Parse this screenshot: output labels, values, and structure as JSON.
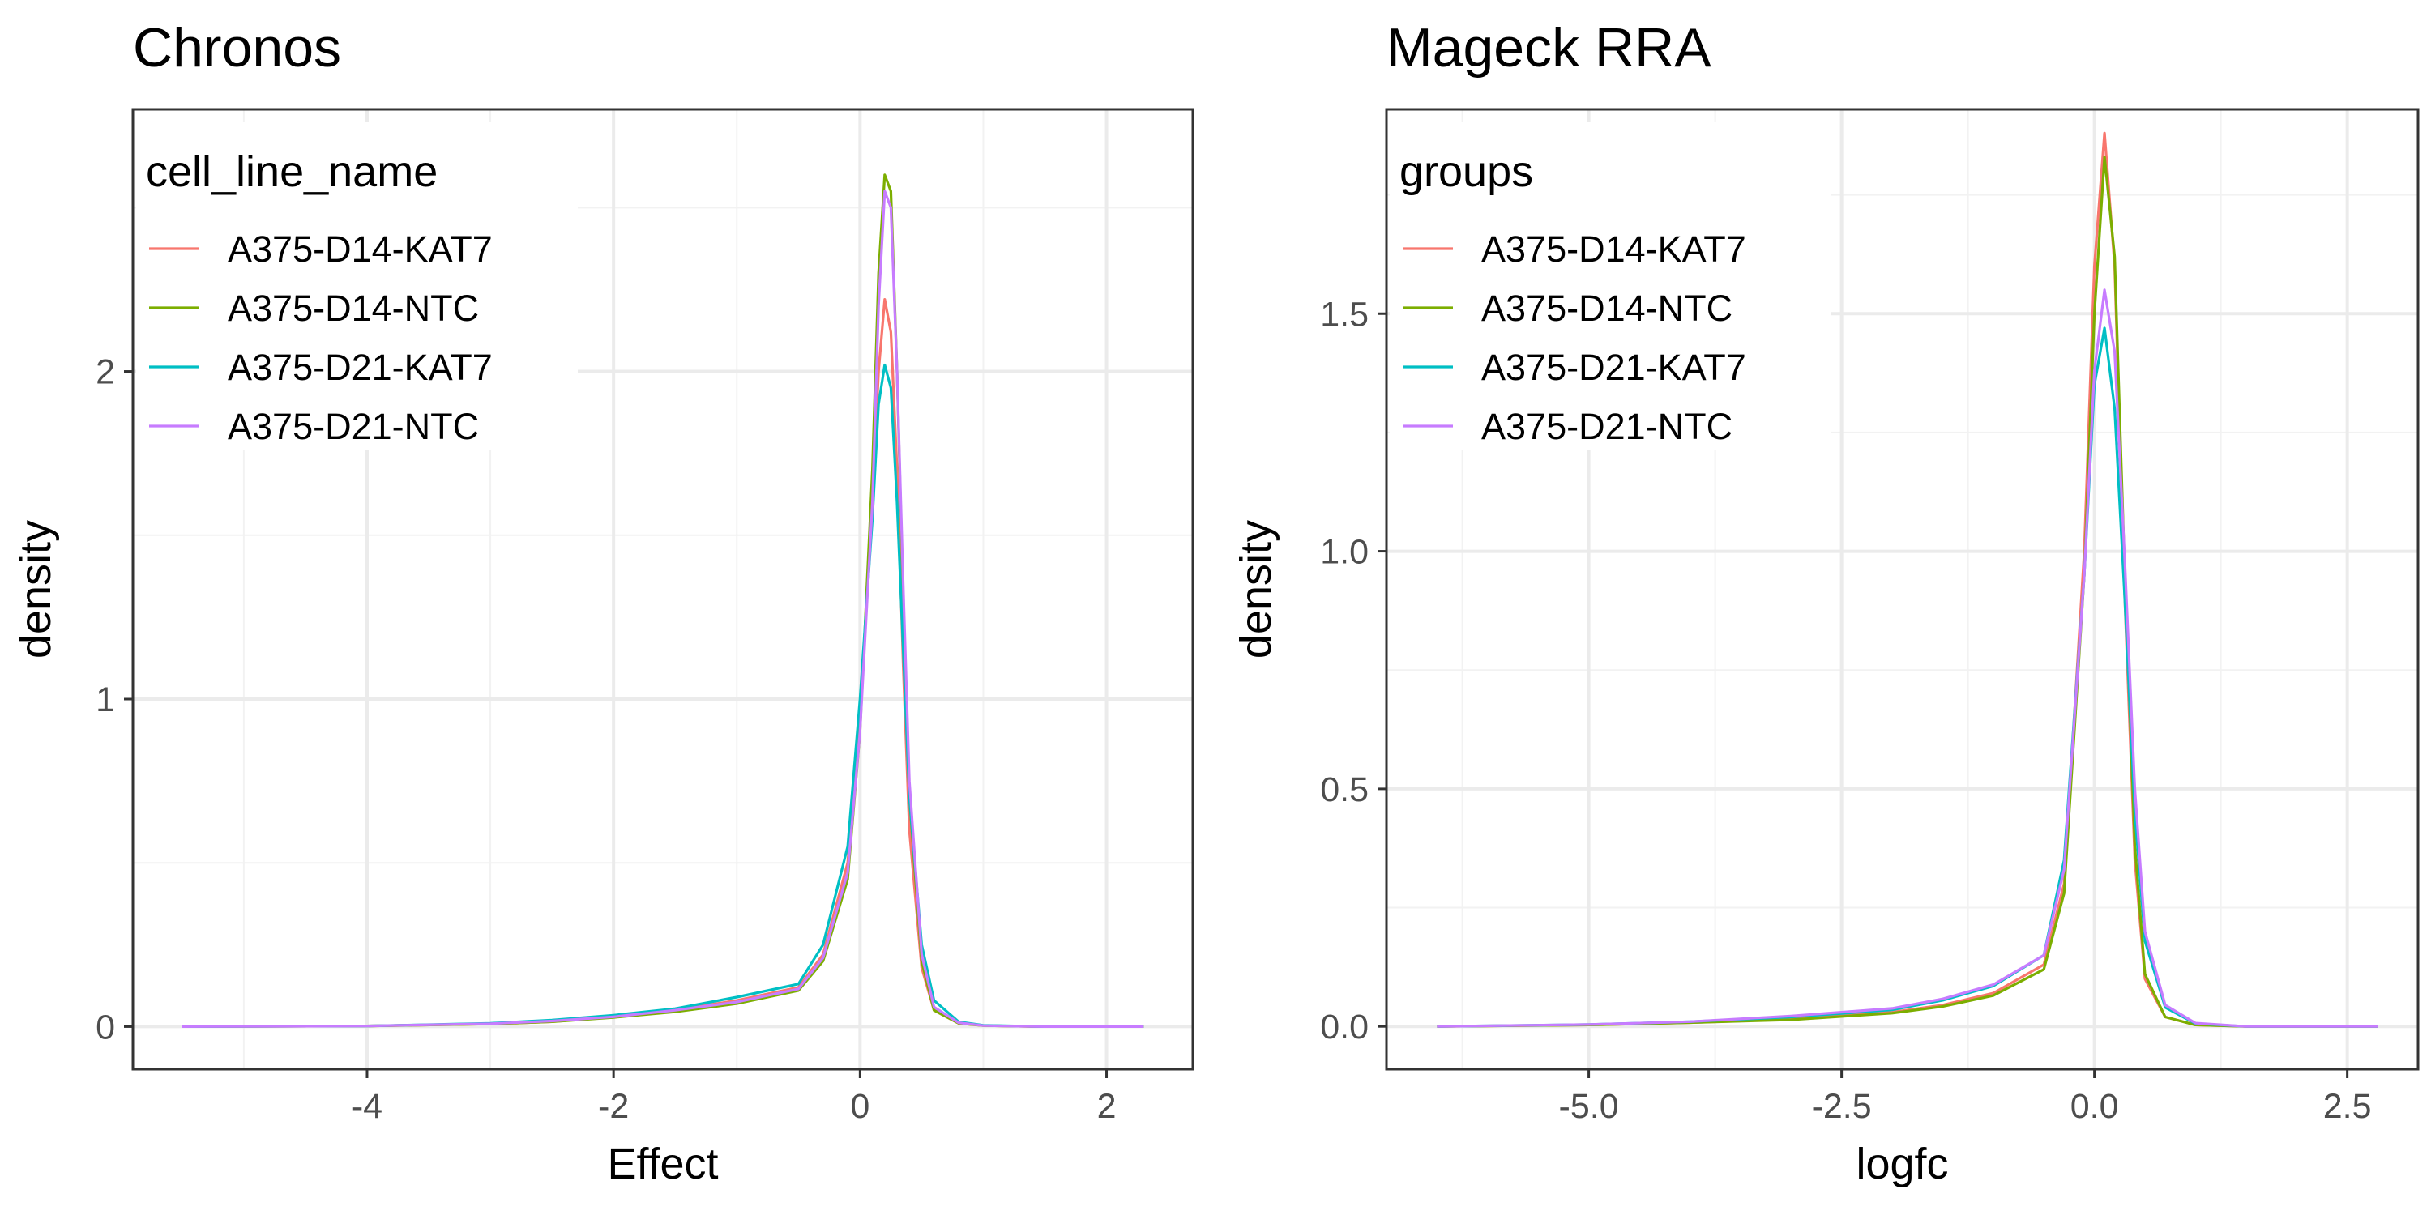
{
  "chart_data": [
    {
      "type": "line",
      "title": "Chronos",
      "xlabel": "Effect",
      "ylabel": "density",
      "xlim": [
        -5.9,
        2.7
      ],
      "ylim": [
        -0.13,
        2.8
      ],
      "xticks": [
        -4,
        -2,
        0,
        2
      ],
      "xtick_labels": [
        "-4",
        "-2",
        "0",
        "2"
      ],
      "yticks": [
        0,
        1,
        2
      ],
      "ytick_labels": [
        "0",
        "1",
        "2"
      ],
      "grid": true,
      "legend": {
        "title": "cell_line_name",
        "position": "top-left"
      },
      "series": [
        {
          "name": "A375-D14-KAT7",
          "color": "#F8766D",
          "x": [
            -5.5,
            -4.0,
            -3.0,
            -2.5,
            -2.0,
            -1.5,
            -1.0,
            -0.5,
            -0.3,
            -0.1,
            0.0,
            0.1,
            0.15,
            0.2,
            0.25,
            0.3,
            0.35,
            0.4,
            0.5,
            0.6,
            0.8,
            1.0,
            1.5,
            2.3
          ],
          "y": [
            0,
            0.002,
            0.008,
            0.015,
            0.03,
            0.05,
            0.08,
            0.12,
            0.22,
            0.5,
            0.95,
            1.6,
            2.0,
            2.22,
            2.12,
            1.7,
            1.1,
            0.6,
            0.18,
            0.05,
            0.01,
            0.003,
            0,
            0
          ]
        },
        {
          "name": "A375-D14-NTC",
          "color": "#7CAE00",
          "x": [
            -5.5,
            -4.0,
            -3.0,
            -2.5,
            -2.0,
            -1.5,
            -1.0,
            -0.5,
            -0.3,
            -0.1,
            0.0,
            0.1,
            0.15,
            0.2,
            0.25,
            0.3,
            0.35,
            0.4,
            0.5,
            0.6,
            0.8,
            1.0,
            1.5,
            2.3
          ],
          "y": [
            0,
            0.002,
            0.008,
            0.015,
            0.028,
            0.045,
            0.07,
            0.11,
            0.2,
            0.45,
            0.9,
            1.7,
            2.3,
            2.6,
            2.55,
            2.0,
            1.3,
            0.7,
            0.2,
            0.05,
            0.01,
            0.003,
            0,
            0
          ]
        },
        {
          "name": "A375-D21-KAT7",
          "color": "#00BFC4",
          "x": [
            -5.5,
            -4.0,
            -3.0,
            -2.5,
            -2.0,
            -1.5,
            -1.0,
            -0.5,
            -0.3,
            -0.1,
            0.0,
            0.1,
            0.15,
            0.2,
            0.25,
            0.3,
            0.35,
            0.4,
            0.5,
            0.6,
            0.8,
            1.0,
            1.5,
            2.3
          ],
          "y": [
            0,
            0.002,
            0.01,
            0.02,
            0.035,
            0.055,
            0.09,
            0.13,
            0.25,
            0.55,
            1.0,
            1.55,
            1.9,
            2.02,
            1.95,
            1.6,
            1.15,
            0.7,
            0.25,
            0.08,
            0.015,
            0.004,
            0,
            0
          ]
        },
        {
          "name": "A375-D21-NTC",
          "color": "#C77CFF",
          "x": [
            -5.5,
            -4.0,
            -3.0,
            -2.5,
            -2.0,
            -1.5,
            -1.0,
            -0.5,
            -0.3,
            -0.1,
            0.0,
            0.1,
            0.15,
            0.2,
            0.25,
            0.3,
            0.35,
            0.4,
            0.5,
            0.6,
            0.8,
            1.0,
            1.5,
            2.3
          ],
          "y": [
            0,
            0.002,
            0.009,
            0.017,
            0.03,
            0.05,
            0.075,
            0.115,
            0.21,
            0.47,
            0.9,
            1.6,
            2.2,
            2.55,
            2.5,
            2.0,
            1.35,
            0.75,
            0.22,
            0.06,
            0.012,
            0.003,
            0,
            0
          ]
        }
      ]
    },
    {
      "type": "line",
      "title": "Mageck RRA",
      "xlabel": "logfc",
      "ylabel": "density",
      "xlim": [
        -7.0,
        3.2
      ],
      "ylim": [
        -0.09,
        1.93
      ],
      "xticks": [
        -5.0,
        -2.5,
        0.0,
        2.5
      ],
      "xtick_labels": [
        "-5.0",
        "-2.5",
        "0.0",
        "2.5"
      ],
      "yticks": [
        0.0,
        0.5,
        1.0,
        1.5
      ],
      "ytick_labels": [
        "0.0",
        "0.5",
        "1.0",
        "1.5"
      ],
      "grid": true,
      "legend": {
        "title": "groups",
        "position": "top-left"
      },
      "series": [
        {
          "name": "A375-D14-KAT7",
          "color": "#F8766D",
          "x": [
            -6.5,
            -5.0,
            -4.0,
            -3.0,
            -2.0,
            -1.5,
            -1.0,
            -0.5,
            -0.3,
            -0.1,
            0.0,
            0.1,
            0.2,
            0.3,
            0.4,
            0.5,
            0.7,
            1.0,
            1.5,
            2.8
          ],
          "y": [
            0,
            0.003,
            0.008,
            0.015,
            0.03,
            0.045,
            0.07,
            0.13,
            0.3,
            1.0,
            1.6,
            1.88,
            1.6,
            0.9,
            0.35,
            0.1,
            0.02,
            0.003,
            0,
            0
          ]
        },
        {
          "name": "A375-D14-NTC",
          "color": "#7CAE00",
          "x": [
            -6.5,
            -5.0,
            -4.0,
            -3.0,
            -2.0,
            -1.5,
            -1.0,
            -0.5,
            -0.3,
            -0.1,
            0.0,
            0.1,
            0.2,
            0.3,
            0.4,
            0.5,
            0.7,
            1.0,
            1.5,
            2.8
          ],
          "y": [
            0,
            0.003,
            0.008,
            0.014,
            0.028,
            0.042,
            0.065,
            0.12,
            0.28,
            0.95,
            1.5,
            1.83,
            1.62,
            0.95,
            0.38,
            0.11,
            0.02,
            0.003,
            0,
            0
          ]
        },
        {
          "name": "A375-D21-KAT7",
          "color": "#00BFC4",
          "x": [
            -6.5,
            -5.0,
            -4.0,
            -3.0,
            -2.0,
            -1.5,
            -1.0,
            -0.5,
            -0.3,
            -0.1,
            0.0,
            0.1,
            0.2,
            0.3,
            0.4,
            0.5,
            0.7,
            1.0,
            1.5,
            2.8
          ],
          "y": [
            0,
            0.004,
            0.01,
            0.02,
            0.035,
            0.055,
            0.085,
            0.15,
            0.35,
            0.95,
            1.35,
            1.47,
            1.3,
            0.9,
            0.45,
            0.18,
            0.04,
            0.006,
            0,
            0
          ]
        },
        {
          "name": "A375-D21-NTC",
          "color": "#C77CFF",
          "x": [
            -6.5,
            -5.0,
            -4.0,
            -3.0,
            -2.0,
            -1.5,
            -1.0,
            -0.5,
            -0.3,
            -0.1,
            0.0,
            0.1,
            0.2,
            0.3,
            0.4,
            0.5,
            0.7,
            1.0,
            1.5,
            2.8
          ],
          "y": [
            0,
            0.004,
            0.01,
            0.022,
            0.038,
            0.058,
            0.088,
            0.15,
            0.33,
            0.95,
            1.38,
            1.55,
            1.42,
            0.98,
            0.5,
            0.2,
            0.045,
            0.007,
            0,
            0
          ]
        }
      ]
    }
  ]
}
